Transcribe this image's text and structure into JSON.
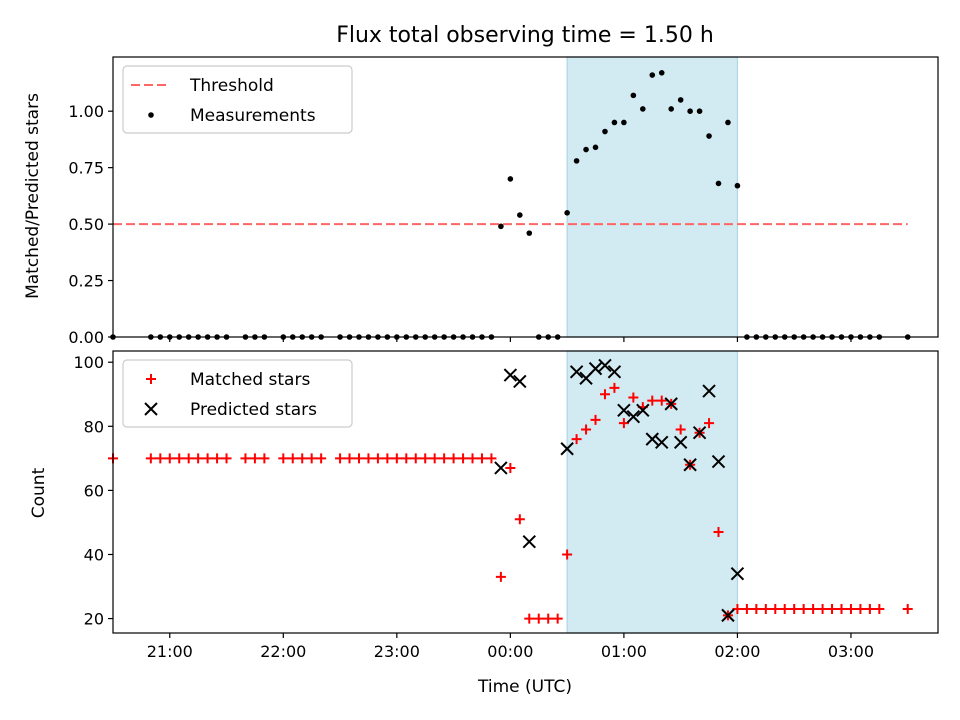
{
  "chart_data": [
    {
      "type": "scatter",
      "title": "Flux total observing time = 1.50 h",
      "xlabel": "",
      "ylabel": "Matched/Predicted stars",
      "xlim": [
        "20:30",
        "03:46"
      ],
      "ylim": [
        0,
        1.24
      ],
      "yticks": [
        0.0,
        0.25,
        0.5,
        0.75,
        1.0
      ],
      "highlight_span": [
        "00:30",
        "02:00"
      ],
      "highlight_color": "#add8e6",
      "legend": {
        "position": "top-left",
        "entries": [
          "Threshold",
          "Measurements"
        ]
      },
      "threshold": {
        "name": "Threshold",
        "y": 0.5,
        "x_range": [
          "20:30",
          "03:30"
        ],
        "color": "#ff6666",
        "style": "dashed"
      },
      "series": [
        {
          "name": "Measurements",
          "color": "#000000",
          "points": [
            [
              "20:30",
              0
            ],
            [
              "20:50",
              0
            ],
            [
              "20:55",
              0
            ],
            [
              "21:00",
              0
            ],
            [
              "21:05",
              0
            ],
            [
              "21:10",
              0
            ],
            [
              "21:15",
              0
            ],
            [
              "21:20",
              0
            ],
            [
              "21:25",
              0
            ],
            [
              "21:30",
              0
            ],
            [
              "21:40",
              0
            ],
            [
              "21:45",
              0
            ],
            [
              "21:50",
              0
            ],
            [
              "22:00",
              0
            ],
            [
              "22:05",
              0
            ],
            [
              "22:10",
              0
            ],
            [
              "22:15",
              0
            ],
            [
              "22:20",
              0
            ],
            [
              "22:30",
              0
            ],
            [
              "22:35",
              0
            ],
            [
              "22:40",
              0
            ],
            [
              "22:45",
              0
            ],
            [
              "22:50",
              0
            ],
            [
              "22:55",
              0
            ],
            [
              "23:00",
              0
            ],
            [
              "23:05",
              0
            ],
            [
              "23:10",
              0
            ],
            [
              "23:15",
              0
            ],
            [
              "23:20",
              0
            ],
            [
              "23:25",
              0
            ],
            [
              "23:30",
              0
            ],
            [
              "23:35",
              0
            ],
            [
              "23:40",
              0
            ],
            [
              "23:45",
              0
            ],
            [
              "23:50",
              0
            ],
            [
              "23:55",
              0.49
            ],
            [
              "00:00",
              0.7
            ],
            [
              "00:05",
              0.54
            ],
            [
              "00:10",
              0.46
            ],
            [
              "00:15",
              0
            ],
            [
              "00:20",
              0
            ],
            [
              "00:25",
              0
            ],
            [
              "00:30",
              0.55
            ],
            [
              "00:35",
              0.78
            ],
            [
              "00:40",
              0.83
            ],
            [
              "00:45",
              0.84
            ],
            [
              "00:50",
              0.91
            ],
            [
              "00:55",
              0.95
            ],
            [
              "01:00",
              0.95
            ],
            [
              "01:05",
              1.07
            ],
            [
              "01:10",
              1.01
            ],
            [
              "01:15",
              1.16
            ],
            [
              "01:20",
              1.17
            ],
            [
              "01:25",
              1.01
            ],
            [
              "01:30",
              1.05
            ],
            [
              "01:35",
              1.0
            ],
            [
              "01:40",
              1.0
            ],
            [
              "01:45",
              0.89
            ],
            [
              "01:50",
              0.68
            ],
            [
              "01:55",
              0.95
            ],
            [
              "02:00",
              0.67
            ],
            [
              "02:05",
              0
            ],
            [
              "02:10",
              0
            ],
            [
              "02:15",
              0
            ],
            [
              "02:20",
              0
            ],
            [
              "02:25",
              0
            ],
            [
              "02:30",
              0
            ],
            [
              "02:35",
              0
            ],
            [
              "02:40",
              0
            ],
            [
              "02:45",
              0
            ],
            [
              "02:50",
              0
            ],
            [
              "02:55",
              0
            ],
            [
              "03:00",
              0
            ],
            [
              "03:05",
              0
            ],
            [
              "03:10",
              0
            ],
            [
              "03:15",
              0
            ],
            [
              "03:30",
              0
            ]
          ]
        }
      ]
    },
    {
      "type": "scatter",
      "title": "",
      "xlabel": "Time (UTC)",
      "ylabel": "Count",
      "xlim": [
        "20:30",
        "03:46"
      ],
      "ylim": [
        15.5,
        103.5
      ],
      "xticks": [
        "21:00",
        "22:00",
        "23:00",
        "00:00",
        "01:00",
        "02:00",
        "03:00"
      ],
      "yticks": [
        20,
        40,
        60,
        80,
        100
      ],
      "highlight_span": [
        "00:30",
        "02:00"
      ],
      "highlight_color": "#add8e6",
      "legend": {
        "position": "top-left",
        "entries": [
          "Matched stars",
          "Predicted stars"
        ]
      },
      "series": [
        {
          "name": "Matched stars",
          "marker": "plus",
          "color": "#ff0000",
          "points": [
            [
              "20:30",
              70
            ],
            [
              "20:50",
              70
            ],
            [
              "20:55",
              70
            ],
            [
              "21:00",
              70
            ],
            [
              "21:05",
              70
            ],
            [
              "21:10",
              70
            ],
            [
              "21:15",
              70
            ],
            [
              "21:20",
              70
            ],
            [
              "21:25",
              70
            ],
            [
              "21:30",
              70
            ],
            [
              "21:40",
              70
            ],
            [
              "21:45",
              70
            ],
            [
              "21:50",
              70
            ],
            [
              "22:00",
              70
            ],
            [
              "22:05",
              70
            ],
            [
              "22:10",
              70
            ],
            [
              "22:15",
              70
            ],
            [
              "22:20",
              70
            ],
            [
              "22:30",
              70
            ],
            [
              "22:35",
              70
            ],
            [
              "22:40",
              70
            ],
            [
              "22:45",
              70
            ],
            [
              "22:50",
              70
            ],
            [
              "22:55",
              70
            ],
            [
              "23:00",
              70
            ],
            [
              "23:05",
              70
            ],
            [
              "23:10",
              70
            ],
            [
              "23:15",
              70
            ],
            [
              "23:20",
              70
            ],
            [
              "23:25",
              70
            ],
            [
              "23:30",
              70
            ],
            [
              "23:35",
              70
            ],
            [
              "23:40",
              70
            ],
            [
              "23:45",
              70
            ],
            [
              "23:50",
              70
            ],
            [
              "23:55",
              33
            ],
            [
              "00:00",
              67
            ],
            [
              "00:05",
              51
            ],
            [
              "00:10",
              20
            ],
            [
              "00:15",
              20
            ],
            [
              "00:20",
              20
            ],
            [
              "00:25",
              20
            ],
            [
              "00:30",
              40
            ],
            [
              "00:35",
              76
            ],
            [
              "00:40",
              79
            ],
            [
              "00:45",
              82
            ],
            [
              "00:50",
              90
            ],
            [
              "00:55",
              92
            ],
            [
              "01:00",
              81
            ],
            [
              "01:05",
              89
            ],
            [
              "01:10",
              86
            ],
            [
              "01:15",
              88
            ],
            [
              "01:20",
              88
            ],
            [
              "01:25",
              87
            ],
            [
              "01:30",
              79
            ],
            [
              "01:35",
              68
            ],
            [
              "01:40",
              78
            ],
            [
              "01:45",
              81
            ],
            [
              "01:50",
              47
            ],
            [
              "01:55",
              21
            ],
            [
              "02:00",
              23
            ],
            [
              "02:05",
              23
            ],
            [
              "02:10",
              23
            ],
            [
              "02:15",
              23
            ],
            [
              "02:20",
              23
            ],
            [
              "02:25",
              23
            ],
            [
              "02:30",
              23
            ],
            [
              "02:35",
              23
            ],
            [
              "02:40",
              23
            ],
            [
              "02:45",
              23
            ],
            [
              "02:50",
              23
            ],
            [
              "02:55",
              23
            ],
            [
              "03:00",
              23
            ],
            [
              "03:05",
              23
            ],
            [
              "03:10",
              23
            ],
            [
              "03:15",
              23
            ],
            [
              "03:30",
              23
            ]
          ]
        },
        {
          "name": "Predicted stars",
          "marker": "x",
          "color": "#000000",
          "points": [
            [
              "23:55",
              67
            ],
            [
              "00:00",
              96
            ],
            [
              "00:05",
              94
            ],
            [
              "00:10",
              44
            ],
            [
              "00:30",
              73
            ],
            [
              "00:35",
              97
            ],
            [
              "00:40",
              95
            ],
            [
              "00:45",
              98
            ],
            [
              "00:50",
              99
            ],
            [
              "00:55",
              97
            ],
            [
              "01:00",
              85
            ],
            [
              "01:05",
              83
            ],
            [
              "01:10",
              85
            ],
            [
              "01:15",
              76
            ],
            [
              "01:20",
              75
            ],
            [
              "01:25",
              87
            ],
            [
              "01:30",
              75
            ],
            [
              "01:35",
              68
            ],
            [
              "01:40",
              78
            ],
            [
              "01:45",
              91
            ],
            [
              "01:50",
              69
            ],
            [
              "01:55",
              21
            ],
            [
              "02:00",
              34
            ]
          ]
        }
      ]
    }
  ]
}
